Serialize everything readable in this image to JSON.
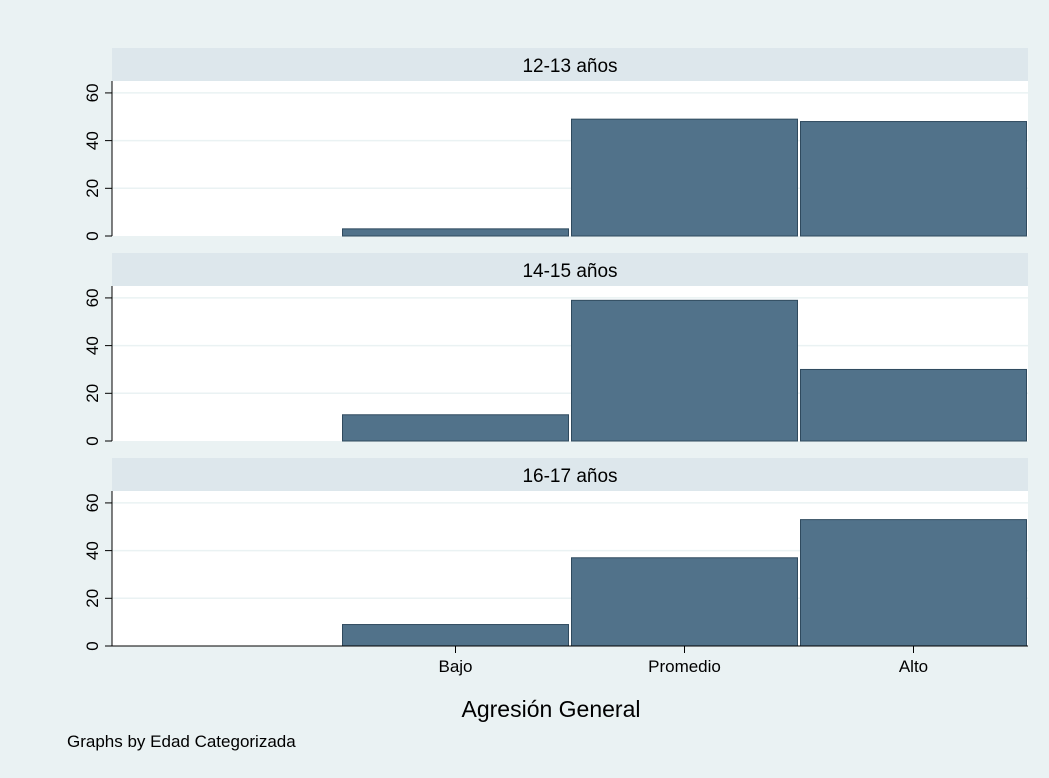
{
  "chart_data": {
    "type": "bar",
    "xlabel": "Agresión General",
    "ylabel": "",
    "note": "Graphs by Edad Categorizada",
    "categories": [
      "",
      "Bajo",
      "Promedio",
      "Alto"
    ],
    "yticks": [
      "0",
      "20",
      "40",
      "60"
    ],
    "ylim": [
      0,
      65
    ],
    "grid": true,
    "colors": {
      "bar": "#51728a",
      "bar_stroke": "#2f4a5e",
      "panel_header": "#dde7ec",
      "background": "#eaf2f3",
      "plot": "#ffffff",
      "grid": "#eaf2f3"
    },
    "panels": [
      {
        "title": "12-13 años",
        "values": [
          0,
          3,
          49,
          48
        ]
      },
      {
        "title": "14-15 años",
        "values": [
          0,
          11,
          59,
          30
        ]
      },
      {
        "title": "16-17 años",
        "values": [
          0,
          9,
          37,
          53
        ]
      }
    ]
  }
}
